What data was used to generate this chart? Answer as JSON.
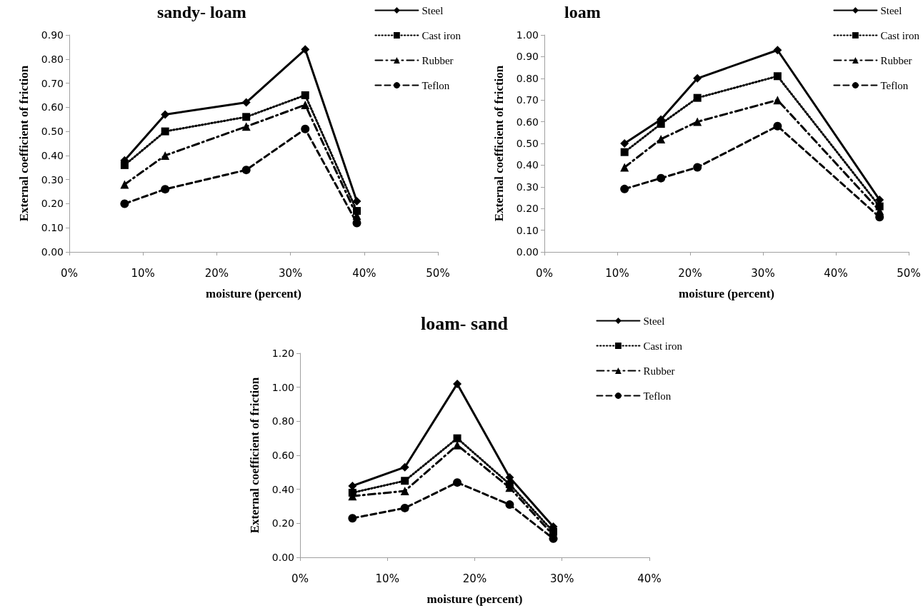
{
  "chart_data": [
    {
      "type": "line",
      "title": "sandy- loam",
      "xlabel": "moisture (percent)",
      "ylabel": "External coefficient of friction",
      "grid": false,
      "legend": "top right",
      "xlim": [
        0,
        0.5
      ],
      "xticks": [
        {
          "value": 0,
          "label": "0%"
        },
        {
          "value": 0.1,
          "label": "10%"
        },
        {
          "value": 0.2,
          "label": "20%"
        },
        {
          "value": 0.3,
          "label": "30%"
        },
        {
          "value": 0.4,
          "label": "40%"
        },
        {
          "value": 0.5,
          "label": "50%"
        }
      ],
      "ylim": [
        0,
        0.9
      ],
      "yticks": [
        {
          "value": 0,
          "label": "0.00"
        },
        {
          "value": 0.1,
          "label": "0.10"
        },
        {
          "value": 0.2,
          "label": "0.20"
        },
        {
          "value": 0.3,
          "label": "0.30"
        },
        {
          "value": 0.4,
          "label": "0.40"
        },
        {
          "value": 0.5,
          "label": "0.50"
        },
        {
          "value": 0.6,
          "label": "0.60"
        },
        {
          "value": 0.7,
          "label": "0.70"
        },
        {
          "value": 0.8,
          "label": "0.80"
        },
        {
          "value": 0.9,
          "label": "0.90"
        }
      ],
      "x": [
        0.075,
        0.13,
        0.24,
        0.32,
        0.39
      ],
      "series": [
        {
          "name": "Steel",
          "color": "#000000",
          "marker": "diamond",
          "line_style": "solid",
          "values": [
            0.38,
            0.57,
            0.62,
            0.84,
            0.21
          ]
        },
        {
          "name": "Cast iron",
          "color": "#000000",
          "marker": "square",
          "line_style": "dotted",
          "values": [
            0.36,
            0.5,
            0.56,
            0.65,
            0.17
          ]
        },
        {
          "name": "Rubber",
          "color": "#000000",
          "marker": "triangle",
          "line_style": "dashdot",
          "values": [
            0.28,
            0.4,
            0.52,
            0.61,
            0.15
          ]
        },
        {
          "name": "Teflon",
          "color": "#000000",
          "marker": "circle",
          "line_style": "dashed",
          "values": [
            0.2,
            0.26,
            0.34,
            0.51,
            0.12
          ]
        }
      ]
    },
    {
      "type": "line",
      "title": "loam",
      "xlabel": "moisture (percent)",
      "ylabel": "External coefficient of friction",
      "grid": false,
      "legend": "top right",
      "xlim": [
        0,
        0.5
      ],
      "xticks": [
        {
          "value": 0,
          "label": "0%"
        },
        {
          "value": 0.1,
          "label": "10%"
        },
        {
          "value": 0.2,
          "label": "20%"
        },
        {
          "value": 0.3,
          "label": "30%"
        },
        {
          "value": 0.4,
          "label": "40%"
        },
        {
          "value": 0.5,
          "label": "50%"
        }
      ],
      "ylim": [
        0,
        1
      ],
      "yticks": [
        {
          "value": 0,
          "label": "0.00"
        },
        {
          "value": 0.1,
          "label": "0.10"
        },
        {
          "value": 0.2,
          "label": "0.20"
        },
        {
          "value": 0.3,
          "label": "0.30"
        },
        {
          "value": 0.4,
          "label": "0.40"
        },
        {
          "value": 0.5,
          "label": "0.50"
        },
        {
          "value": 0.6,
          "label": "0.60"
        },
        {
          "value": 0.7,
          "label": "0.70"
        },
        {
          "value": 0.8,
          "label": "0.80"
        },
        {
          "value": 0.9,
          "label": "0.90"
        },
        {
          "value": 1,
          "label": "1.00"
        }
      ],
      "x": [
        0.11,
        0.16,
        0.21,
        0.32,
        0.46
      ],
      "series": [
        {
          "name": "Steel",
          "color": "#000000",
          "marker": "diamond",
          "line_style": "solid",
          "values": [
            0.5,
            0.61,
            0.8,
            0.93,
            0.24
          ]
        },
        {
          "name": "Cast iron",
          "color": "#000000",
          "marker": "square",
          "line_style": "dotted",
          "values": [
            0.46,
            0.59,
            0.71,
            0.81,
            0.21
          ]
        },
        {
          "name": "Rubber",
          "color": "#000000",
          "marker": "triangle",
          "line_style": "dashdot",
          "values": [
            0.39,
            0.52,
            0.6,
            0.7,
            0.19
          ]
        },
        {
          "name": "Teflon",
          "color": "#000000",
          "marker": "circle",
          "line_style": "dashed",
          "values": [
            0.29,
            0.34,
            0.39,
            0.58,
            0.16
          ]
        }
      ]
    },
    {
      "type": "line",
      "title": "loam- sand",
      "xlabel": "moisture (percent)",
      "ylabel": "External coefficient of friction",
      "grid": false,
      "legend": "top right",
      "xlim": [
        0,
        0.4
      ],
      "xticks": [
        {
          "value": 0,
          "label": "0%"
        },
        {
          "value": 0.1,
          "label": "10%"
        },
        {
          "value": 0.2,
          "label": "20%"
        },
        {
          "value": 0.3,
          "label": "30%"
        },
        {
          "value": 0.4,
          "label": "40%"
        }
      ],
      "ylim": [
        0,
        1.2
      ],
      "yticks": [
        {
          "value": 0,
          "label": "0.00"
        },
        {
          "value": 0.2,
          "label": "0.20"
        },
        {
          "value": 0.4,
          "label": "0.40"
        },
        {
          "value": 0.6,
          "label": "0.60"
        },
        {
          "value": 0.8,
          "label": "0.80"
        },
        {
          "value": 1,
          "label": "1.00"
        },
        {
          "value": 1.2,
          "label": "1.20"
        }
      ],
      "x": [
        0.06,
        0.12,
        0.18,
        0.24,
        0.29
      ],
      "series": [
        {
          "name": "Steel",
          "color": "#000000",
          "marker": "diamond",
          "line_style": "solid",
          "values": [
            0.42,
            0.53,
            1.02,
            0.47,
            0.18
          ]
        },
        {
          "name": "Cast iron",
          "color": "#000000",
          "marker": "square",
          "line_style": "dotted",
          "values": [
            0.38,
            0.45,
            0.7,
            0.43,
            0.15
          ]
        },
        {
          "name": "Rubber",
          "color": "#000000",
          "marker": "triangle",
          "line_style": "dashdot",
          "values": [
            0.36,
            0.39,
            0.66,
            0.41,
            0.13
          ]
        },
        {
          "name": "Teflon",
          "color": "#000000",
          "marker": "circle",
          "line_style": "dashed",
          "values": [
            0.23,
            0.29,
            0.44,
            0.31,
            0.11
          ]
        }
      ]
    }
  ]
}
